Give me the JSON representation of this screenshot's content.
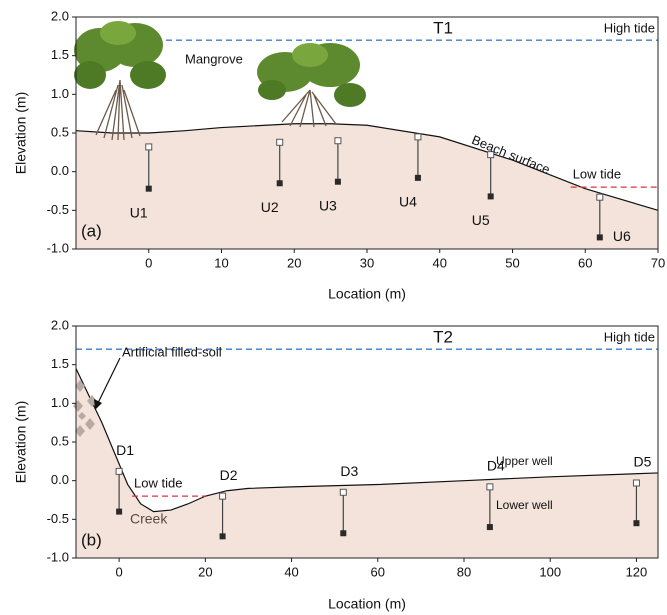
{
  "chart_data": [
    {
      "type": "cross-section",
      "title": "T1",
      "xlabel": "Location (m)",
      "ylabel": "Elevation (m)",
      "panel_label": "(a)",
      "xlim": [
        -10,
        70
      ],
      "xticks": [
        0,
        10,
        20,
        30,
        40,
        50,
        60,
        70
      ],
      "ylim": [
        -1,
        2
      ],
      "yticks": [
        {
          "value": -1,
          "label": "-1.0"
        },
        {
          "value": -0.5,
          "label": "-0.5"
        },
        {
          "value": 0,
          "label": "0.0"
        },
        {
          "value": 0.5,
          "label": "0.5"
        },
        {
          "value": 1,
          "label": "1.0"
        },
        {
          "value": 1.5,
          "label": "1.5"
        },
        {
          "value": 2,
          "label": "2.0"
        }
      ],
      "surface": {
        "x": [
          -10,
          -5,
          0,
          5,
          10,
          20,
          25,
          30,
          40,
          50,
          60,
          70
        ],
        "y": [
          0.53,
          0.5,
          0.5,
          0.53,
          0.57,
          0.62,
          0.62,
          0.6,
          0.45,
          0.15,
          -0.22,
          -0.5
        ],
        "color": "#f3e3da"
      },
      "tides": [
        {
          "name": "High tide",
          "value": 1.7,
          "color": "#3d7cc9"
        },
        {
          "name": "Low tide",
          "value": -0.2,
          "color": "#d8343c",
          "xrange": [
            58,
            70
          ]
        }
      ],
      "wells": [
        {
          "name": "U1",
          "x": 0,
          "upper": 0.32,
          "lower": -0.22
        },
        {
          "name": "U2",
          "x": 18,
          "upper": 0.38,
          "lower": -0.15
        },
        {
          "name": "U3",
          "x": 26,
          "upper": 0.4,
          "lower": -0.13
        },
        {
          "name": "U4",
          "x": 37,
          "upper": 0.45,
          "lower": -0.08
        },
        {
          "name": "U5",
          "x": 47,
          "upper": 0.22,
          "lower": -0.32
        },
        {
          "name": "U6",
          "x": 62,
          "upper": -0.33,
          "lower": -0.85
        }
      ],
      "annotations": [
        "Mangrove",
        "Beach surface"
      ]
    },
    {
      "type": "cross-section",
      "title": "T2",
      "xlabel": "Location (m)",
      "ylabel": "Elevation (m)",
      "panel_label": "(b)",
      "xlim": [
        -10,
        125
      ],
      "xticks": [
        0,
        20,
        40,
        60,
        80,
        100,
        120
      ],
      "ylim": [
        -1,
        2
      ],
      "yticks": [
        {
          "value": -1,
          "label": "-1.0"
        },
        {
          "value": -0.5,
          "label": "-0.5"
        },
        {
          "value": 0,
          "label": "0.0"
        },
        {
          "value": 0.5,
          "label": "0.5"
        },
        {
          "value": 1,
          "label": "1.0"
        },
        {
          "value": 1.5,
          "label": "1.5"
        },
        {
          "value": 2,
          "label": "2.0"
        }
      ],
      "surface": {
        "x": [
          -10,
          -7,
          -4,
          -1,
          2,
          5,
          8,
          12,
          16,
          20,
          25,
          30,
          40,
          60,
          80,
          100,
          125
        ],
        "y": [
          1.45,
          1.1,
          0.75,
          0.35,
          -0.05,
          -0.3,
          -0.4,
          -0.38,
          -0.3,
          -0.2,
          -0.13,
          -0.1,
          -0.08,
          -0.05,
          0,
          0.05,
          0.1
        ],
        "color": "#f3e3da"
      },
      "tides": [
        {
          "name": "High tide",
          "value": 1.7,
          "color": "#3d7cc9"
        },
        {
          "name": "Low tide",
          "value": -0.2,
          "color": "#d8343c",
          "xrange": [
            3,
            20
          ]
        }
      ],
      "wells": [
        {
          "name": "D1",
          "x": 0,
          "upper": 0.12,
          "lower": -0.4
        },
        {
          "name": "D2",
          "x": 24,
          "upper": -0.2,
          "lower": -0.72
        },
        {
          "name": "D3",
          "x": 52,
          "upper": -0.15,
          "lower": -0.68
        },
        {
          "name": "D4",
          "x": 86,
          "upper": -0.08,
          "lower": -0.6
        },
        {
          "name": "D5",
          "x": 120,
          "upper": -0.03,
          "lower": -0.55
        }
      ],
      "annotations": [
        "Artificial filled-soil",
        "Creek",
        "Upper well",
        "Lower well"
      ]
    }
  ]
}
